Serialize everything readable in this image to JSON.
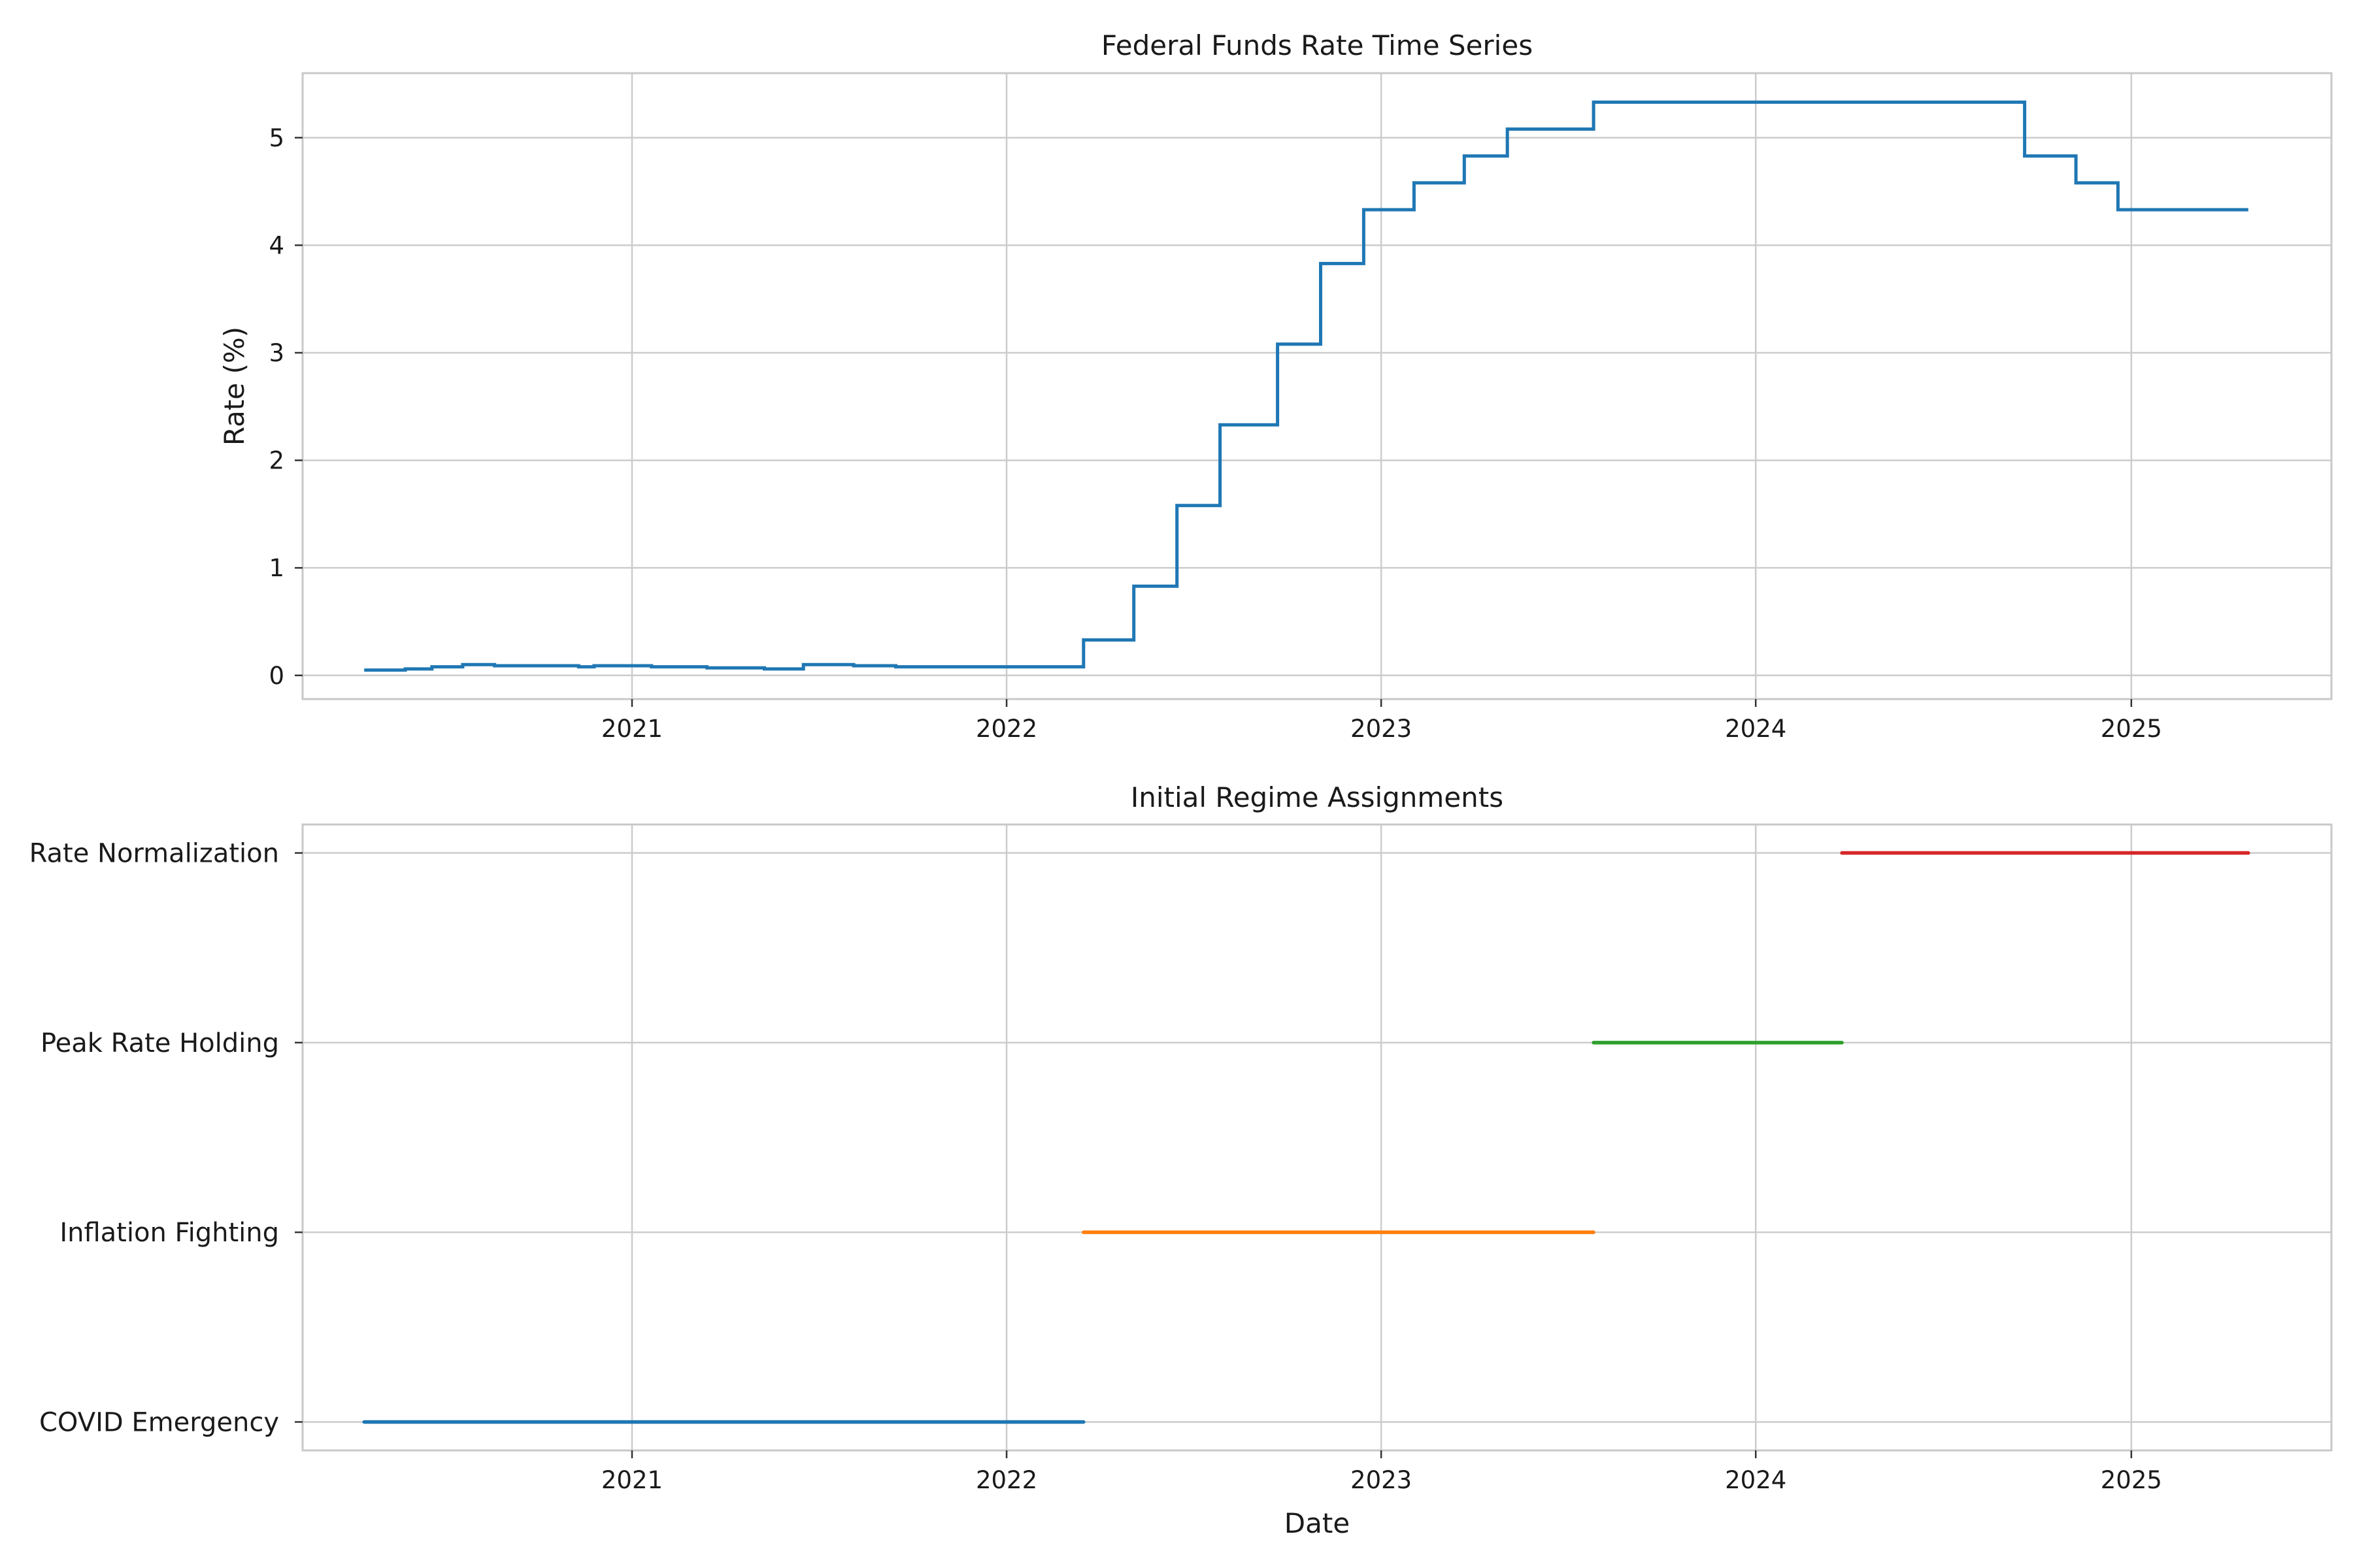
{
  "chart_data": [
    {
      "type": "line",
      "title": "Federal Funds Rate Time Series",
      "xlabel": "",
      "ylabel": "Rate (%)",
      "x_ticks": [
        "2021",
        "2022",
        "2023",
        "2024",
        "2025"
      ],
      "y_ticks": [
        "0",
        "1",
        "2",
        "3",
        "4",
        "5"
      ],
      "xlim": [
        "2020-02-15",
        "2025-07-15"
      ],
      "ylim": [
        -0.22,
        5.6
      ],
      "grid": true,
      "line_color": "#1f77b4",
      "series": [
        {
          "step": true,
          "points": [
            [
              "2020-04-15",
              0.05
            ],
            [
              "2020-05-25",
              0.06
            ],
            [
              "2020-06-20",
              0.08
            ],
            [
              "2020-07-20",
              0.1
            ],
            [
              "2020-08-20",
              0.09
            ],
            [
              "2020-11-10",
              0.08
            ],
            [
              "2020-11-25",
              0.09
            ],
            [
              "2021-01-05",
              0.09
            ],
            [
              "2021-01-20",
              0.08
            ],
            [
              "2021-03-15",
              0.07
            ],
            [
              "2021-05-10",
              0.06
            ],
            [
              "2021-06-17",
              0.1
            ],
            [
              "2021-08-05",
              0.09
            ],
            [
              "2021-09-15",
              0.08
            ],
            [
              "2022-03-17",
              0.33
            ],
            [
              "2022-05-05",
              0.83
            ],
            [
              "2022-06-16",
              1.58
            ],
            [
              "2022-07-28",
              2.33
            ],
            [
              "2022-09-22",
              3.08
            ],
            [
              "2022-11-03",
              3.83
            ],
            [
              "2022-12-15",
              4.33
            ],
            [
              "2023-02-02",
              4.58
            ],
            [
              "2023-03-23",
              4.83
            ],
            [
              "2023-05-04",
              5.08
            ],
            [
              "2023-07-27",
              5.33
            ],
            [
              "2024-09-19",
              4.83
            ],
            [
              "2024-11-08",
              4.58
            ],
            [
              "2024-12-19",
              4.33
            ],
            [
              "2025-04-25",
              4.33
            ]
          ]
        }
      ]
    },
    {
      "type": "line",
      "title": "Initial Regime Assignments",
      "xlabel": "Date",
      "ylabel": "",
      "x_ticks": [
        "2021",
        "2022",
        "2023",
        "2024",
        "2025"
      ],
      "categories": [
        "COVID Emergency",
        "Inflation Fighting",
        "Peak Rate Holding",
        "Rate Normalization"
      ],
      "xlim": [
        "2020-02-15",
        "2025-07-15"
      ],
      "grid": true,
      "series": [
        {
          "category": "COVID Emergency",
          "start": "2020-04-15",
          "end": "2022-03-17",
          "color": "#1f77b4"
        },
        {
          "category": "Inflation Fighting",
          "start": "2022-03-17",
          "end": "2023-07-27",
          "color": "#ff7f0e"
        },
        {
          "category": "Peak Rate Holding",
          "start": "2023-07-27",
          "end": "2024-03-25",
          "color": "#2ca02c"
        },
        {
          "category": "Rate Normalization",
          "start": "2024-03-25",
          "end": "2025-04-25",
          "color": "#d62728"
        }
      ]
    }
  ]
}
